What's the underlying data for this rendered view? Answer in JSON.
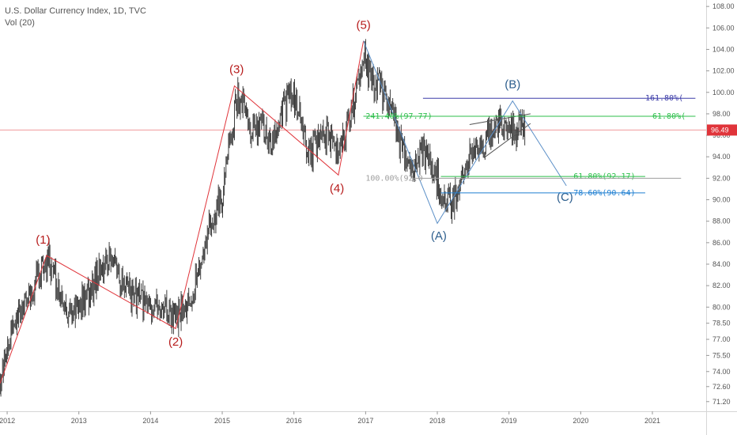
{
  "header": {
    "title": "U.S. Dollar Currency Index, 1D, TVC",
    "volume": "Vol (20)"
  },
  "colors": {
    "candle": "#3d3d3d",
    "wave_line": "#e0343a",
    "wave_label": "#b71c1c",
    "abc_line": "#5b8fc7",
    "abc_label": "#2e5f8e",
    "fib_green": "#2dbf4b",
    "fib_blue": "#1f7fd1",
    "fib_purple": "#3c3ca8",
    "fib_gray": "#9e9e9e",
    "price_tag": "#e0343a",
    "wedge": "#555555"
  },
  "chart_data": {
    "type": "candlestick",
    "xlim": [
      2011.9,
      2021.75
    ],
    "ylim": [
      70.3,
      108.6
    ],
    "x_ticks": [
      {
        "x": 2012,
        "label": "2012"
      },
      {
        "x": 2013,
        "label": "2013"
      },
      {
        "x": 2014,
        "label": "2014"
      },
      {
        "x": 2015,
        "label": "2015"
      },
      {
        "x": 2016,
        "label": "2016"
      },
      {
        "x": 2017,
        "label": "2017"
      },
      {
        "x": 2018,
        "label": "2018"
      },
      {
        "x": 2019,
        "label": "2019"
      },
      {
        "x": 2020,
        "label": "2020"
      },
      {
        "x": 2021,
        "label": "2021"
      }
    ],
    "y_ticks": [
      "71.20",
      "72.60",
      "74.00",
      "75.50",
      "77.00",
      "78.50",
      "80.00",
      "82.00",
      "84.00",
      "86.00",
      "88.00",
      "90.00",
      "92.00",
      "94.00",
      "96.00",
      "98.00",
      "100.00",
      "102.00",
      "104.00",
      "106.00",
      "108.00"
    ],
    "last_price": {
      "value": 96.49,
      "label": "96.49"
    },
    "price_path": [
      [
        2011.9,
        73.2
      ],
      [
        2012.05,
        77.5
      ],
      [
        2012.2,
        79.8
      ],
      [
        2012.35,
        81.5
      ],
      [
        2012.5,
        83.5
      ],
      [
        2012.58,
        84.5
      ],
      [
        2012.7,
        82.0
      ],
      [
        2012.85,
        79.5
      ],
      [
        2013.0,
        79.9
      ],
      [
        2013.1,
        80.8
      ],
      [
        2013.25,
        82.8
      ],
      [
        2013.42,
        84.6
      ],
      [
        2013.55,
        83.2
      ],
      [
        2013.7,
        81.3
      ],
      [
        2013.85,
        80.5
      ],
      [
        2014.0,
        80.3
      ],
      [
        2014.2,
        79.9
      ],
      [
        2014.35,
        78.9
      ],
      [
        2014.45,
        80.2
      ],
      [
        2014.55,
        81.0
      ],
      [
        2014.7,
        84.0
      ],
      [
        2014.85,
        88.0
      ],
      [
        2015.0,
        90.8
      ],
      [
        2015.1,
        95.0
      ],
      [
        2015.2,
        99.5
      ],
      [
        2015.3,
        98.8
      ],
      [
        2015.4,
        95.2
      ],
      [
        2015.5,
        97.6
      ],
      [
        2015.6,
        96.0
      ],
      [
        2015.7,
        95.3
      ],
      [
        2015.8,
        97.5
      ],
      [
        2015.92,
        99.5
      ],
      [
        2016.05,
        98.5
      ],
      [
        2016.2,
        94.5
      ],
      [
        2016.35,
        95.5
      ],
      [
        2016.5,
        96.0
      ],
      [
        2016.6,
        94.8
      ],
      [
        2016.7,
        95.6
      ],
      [
        2016.8,
        98.0
      ],
      [
        2016.92,
        102.0
      ],
      [
        2017.0,
        103.0
      ],
      [
        2017.1,
        100.5
      ],
      [
        2017.2,
        101.0
      ],
      [
        2017.35,
        98.5
      ],
      [
        2017.5,
        95.0
      ],
      [
        2017.6,
        93.0
      ],
      [
        2017.7,
        92.5
      ],
      [
        2017.8,
        94.5
      ],
      [
        2017.9,
        93.5
      ],
      [
        2018.0,
        92.0
      ],
      [
        2018.08,
        89.2
      ],
      [
        2018.15,
        89.5
      ],
      [
        2018.25,
        90.0
      ],
      [
        2018.35,
        92.5
      ],
      [
        2018.45,
        94.0
      ],
      [
        2018.55,
        95.0
      ],
      [
        2018.65,
        95.3
      ],
      [
        2018.75,
        96.2
      ],
      [
        2018.85,
        97.2
      ],
      [
        2018.95,
        96.8
      ],
      [
        2019.05,
        96.5
      ],
      [
        2019.1,
        96.3
      ],
      [
        2019.17,
        97.3
      ],
      [
        2019.22,
        96.6
      ]
    ],
    "wave_points": [
      {
        "label": "(1)",
        "x": 2012.55,
        "y": 84.8,
        "lx": 2012.5,
        "ly": 85.9
      },
      {
        "label": "(2)",
        "x": 2014.35,
        "y": 78.0,
        "lx": 2014.35,
        "ly": 76.4
      },
      {
        "label": "(3)",
        "x": 2015.17,
        "y": 100.6,
        "lx": 2015.2,
        "ly": 101.8
      },
      {
        "label": "(4)",
        "x": 2016.62,
        "y": 92.3,
        "lx": 2016.6,
        "ly": 90.7
      },
      {
        "label": "(5)",
        "x": 2016.97,
        "y": 104.8,
        "lx": 2016.97,
        "ly": 105.9
      }
    ],
    "wave_start": {
      "x": 2011.9,
      "y": 72.9
    },
    "abc_points": [
      {
        "label": "(A)",
        "x": 2018.0,
        "y": 87.8,
        "lx": 2018.02,
        "ly": 86.3
      },
      {
        "label": "(B)",
        "x": 2019.05,
        "y": 99.2,
        "lx": 2019.05,
        "ly": 100.4
      },
      {
        "label": "(C)",
        "x": 2019.8,
        "y": 91.3,
        "lx": 2019.78,
        "ly": 89.9
      }
    ],
    "fib_levels": [
      {
        "label": "161.80%(",
        "value": 99.45,
        "x1": 2017.8,
        "x2": 2021.6,
        "color_key": "fib_purple",
        "label_x": 2020.9,
        "anchor": "start"
      },
      {
        "label": "241.40%(97.77)",
        "value": 97.77,
        "x1": 2016.97,
        "x2": 2021.6,
        "color_key": "fib_green",
        "label_x": 2017.0,
        "anchor": "start"
      },
      {
        "label": "61.80%(",
        "value": 97.77,
        "x1": 2016.97,
        "x2": 2021.6,
        "color_key": "fib_green",
        "label_x": 2021.0,
        "anchor": "start"
      },
      {
        "label": "61.80%(92.17)",
        "value": 92.17,
        "x1": 2018.05,
        "x2": 2020.9,
        "color_key": "fib_green",
        "label_x": 2019.9,
        "anchor": "start"
      },
      {
        "label": "100.00%(92.0",
        "value": 92.0,
        "x1": 2017.65,
        "x2": 2021.4,
        "color_key": "fib_gray",
        "label_x": 2017.0,
        "anchor": "start"
      },
      {
        "label": "78.60%(90.64)",
        "value": 90.64,
        "x1": 2018.05,
        "x2": 2020.9,
        "color_key": "fib_blue",
        "label_x": 2019.9,
        "anchor": "start"
      }
    ],
    "wedge_lines": [
      {
        "x1": 2018.45,
        "y1": 97.0,
        "x2": 2019.3,
        "y2": 98.0
      },
      {
        "x1": 2018.65,
        "y1": 93.9,
        "x2": 2019.3,
        "y2": 97.1
      }
    ]
  }
}
